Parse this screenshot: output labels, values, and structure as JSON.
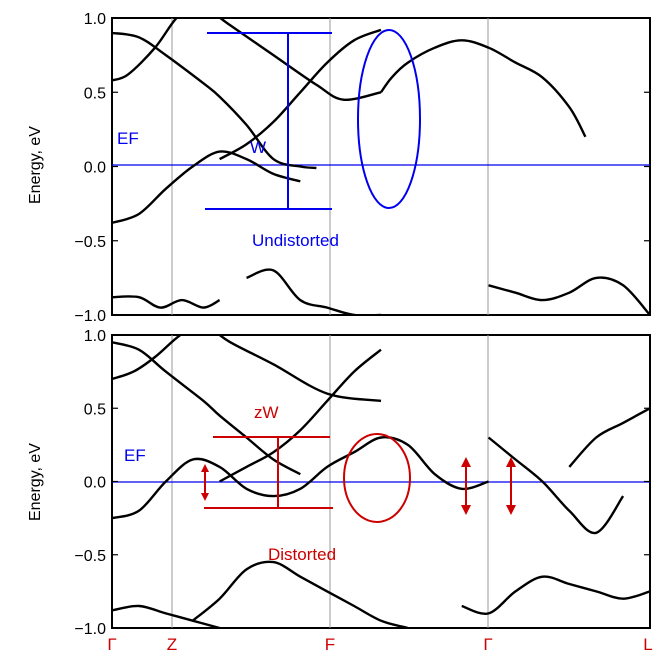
{
  "chart_data": [
    {
      "type": "line",
      "panel": "top",
      "ylabel": "Energy, eV",
      "ylim": [
        -1.0,
        1.0
      ],
      "yticks": [
        "1.0",
        "0.5",
        "0.0",
        "−0.5",
        "−1.0"
      ],
      "k_points": [
        "Γ",
        "Z",
        "F",
        "Γ",
        "L"
      ],
      "fermi_level": 0.0,
      "annotations": {
        "fermi": "EF",
        "width": "W",
        "label": "Undistorted"
      },
      "colors": {
        "bands": "#000000",
        "annotation": "#0000ee",
        "grid": "#999999"
      },
      "series": [
        {
          "x": [
            0,
            0.05,
            0.1,
            0.17,
            0.2,
            0.25,
            0.3,
            0.35,
            0.38
          ],
          "y": [
            0.9,
            0.87,
            0.75,
            0.56,
            0.47,
            0.28,
            0.05,
            0.0,
            -0.01
          ]
        },
        {
          "x": [
            0,
            0.03,
            0.08,
            0.12,
            0.15,
            0.18,
            0.22,
            0.3,
            0.38,
            0.43,
            0.5
          ],
          "y": [
            0.58,
            0.62,
            0.8,
            1.0,
            1.05,
            1.05,
            0.95,
            0.75,
            0.55,
            0.45,
            0.5
          ]
        },
        {
          "x": [
            0.2,
            0.25,
            0.3,
            0.35,
            0.4,
            0.45,
            0.5
          ],
          "y": [
            0.05,
            0.15,
            0.3,
            0.5,
            0.7,
            0.85,
            0.92
          ]
        },
        {
          "x": [
            0.5,
            0.52,
            0.55,
            0.6,
            0.65,
            0.7,
            0.75,
            0.8,
            0.85,
            0.88
          ],
          "y": [
            0.5,
            0.6,
            0.7,
            0.8,
            0.85,
            0.8,
            0.7,
            0.6,
            0.4,
            0.2
          ]
        },
        {
          "x": [
            0,
            0.05,
            0.1,
            0.15,
            0.2,
            0.25,
            0.3,
            0.35
          ],
          "y": [
            -0.38,
            -0.32,
            -0.15,
            0.0,
            0.1,
            0.05,
            -0.05,
            -0.1
          ]
        },
        {
          "x": [
            0,
            0.05,
            0.09,
            0.13,
            0.17,
            0.2
          ],
          "y": [
            -0.88,
            -0.88,
            -0.95,
            -0.9,
            -0.95,
            -0.9
          ]
        },
        {
          "x": [
            0.25,
            0.3,
            0.35,
            0.4,
            0.45,
            0.5
          ],
          "y": [
            -0.75,
            -0.7,
            -0.9,
            -0.95,
            -1.0,
            -1.0
          ]
        },
        {
          "x": [
            0.7,
            0.75,
            0.8,
            0.85,
            0.9,
            0.95,
            1.0
          ],
          "y": [
            -0.8,
            -0.85,
            -0.9,
            -0.85,
            -0.75,
            -0.8,
            -1.0
          ]
        }
      ]
    },
    {
      "type": "line",
      "panel": "bottom",
      "ylabel": "Energy, eV",
      "ylim": [
        -1.0,
        1.0
      ],
      "yticks": [
        "1.0",
        "0.5",
        "0.0",
        "−0.5",
        "−1.0"
      ],
      "k_points": [
        "Γ",
        "Z",
        "F",
        "Γ",
        "L"
      ],
      "fermi_level": 0.0,
      "annotations": {
        "fermi": "EF",
        "width": "zW",
        "label": "Distorted"
      },
      "colors": {
        "bands": "#000000",
        "annotation": "#cc0000",
        "grid": "#999999"
      },
      "series": [
        {
          "x": [
            0,
            0.05,
            0.1,
            0.17,
            0.2,
            0.25,
            0.3,
            0.35
          ],
          "y": [
            0.95,
            0.9,
            0.75,
            0.55,
            0.45,
            0.3,
            0.15,
            0.05
          ]
        },
        {
          "x": [
            0,
            0.04,
            0.08,
            0.12,
            0.15,
            0.18,
            0.22,
            0.3,
            0.4,
            0.5
          ],
          "y": [
            0.7,
            0.75,
            0.85,
            0.98,
            1.05,
            1.05,
            0.95,
            0.8,
            0.6,
            0.55
          ]
        },
        {
          "x": [
            0.2,
            0.25,
            0.3,
            0.35,
            0.4,
            0.45,
            0.5
          ],
          "y": [
            0.0,
            0.1,
            0.2,
            0.35,
            0.55,
            0.75,
            0.9
          ]
        },
        {
          "x": [
            0.0,
            0.05,
            0.1,
            0.15,
            0.2,
            0.25,
            0.3,
            0.35,
            0.4,
            0.45,
            0.5,
            0.55,
            0.6,
            0.65,
            0.7
          ],
          "y": [
            -0.25,
            -0.2,
            0.0,
            0.15,
            0.1,
            -0.05,
            -0.1,
            -0.05,
            0.1,
            0.2,
            0.3,
            0.25,
            0.05,
            -0.05,
            0.0
          ]
        },
        {
          "x": [
            0.7,
            0.75,
            0.8,
            0.85,
            0.9,
            0.95
          ],
          "y": [
            0.3,
            0.15,
            0.0,
            -0.2,
            -0.35,
            -0.1
          ]
        },
        {
          "x": [
            0.85,
            0.9,
            0.95,
            1.0
          ],
          "y": [
            0.1,
            0.3,
            0.4,
            0.5
          ]
        },
        {
          "x": [
            0,
            0.05,
            0.1,
            0.15,
            0.2
          ],
          "y": [
            -0.88,
            -0.85,
            -0.9,
            -0.95,
            -1.0
          ]
        },
        {
          "x": [
            0.15,
            0.2,
            0.25,
            0.3,
            0.35,
            0.4,
            0.45,
            0.5,
            0.55
          ],
          "y": [
            -0.95,
            -0.8,
            -0.6,
            -0.55,
            -0.65,
            -0.75,
            -0.85,
            -0.95,
            -1.0
          ]
        },
        {
          "x": [
            0.65,
            0.7,
            0.75,
            0.8,
            0.85,
            0.9,
            0.95,
            1.0
          ],
          "y": [
            -0.85,
            -0.9,
            -0.75,
            -0.65,
            -0.7,
            -0.75,
            -0.8,
            -0.75
          ]
        }
      ]
    }
  ]
}
